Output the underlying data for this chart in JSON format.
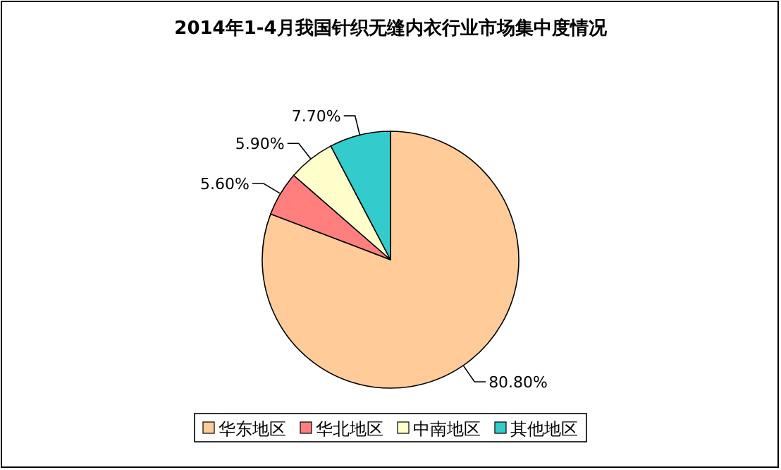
{
  "chart_data": {
    "type": "pie",
    "title": "2014年1-4月我国针织无缝内衣行业市场集中度情况",
    "categories": [
      "华东地区",
      "华北地区",
      "中南地区",
      "其他地区"
    ],
    "values": [
      80.8,
      5.6,
      5.9,
      7.7
    ],
    "value_labels": [
      "80.80%",
      "5.60%",
      "5.90%",
      "7.70%"
    ],
    "colors": [
      "#ffcc99",
      "#ff7f7f",
      "#ffffcc",
      "#33cccc"
    ],
    "legend": "bottom"
  }
}
